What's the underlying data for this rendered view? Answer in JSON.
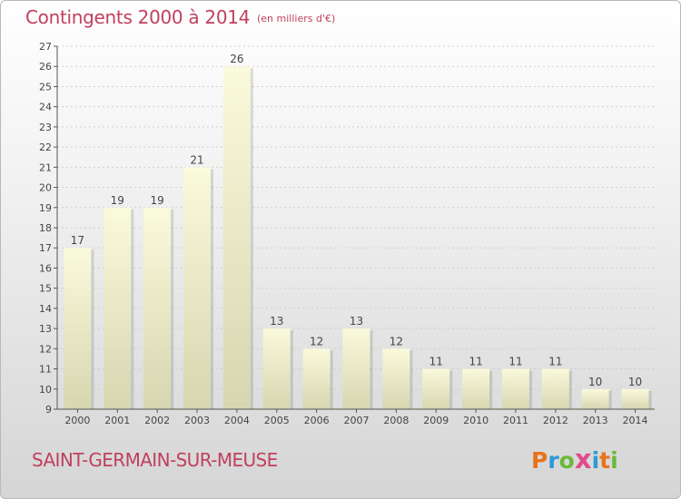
{
  "header": {
    "title": "Contingents 2000 à 2014",
    "subtitle": "(en milliers d'€)"
  },
  "footer": {
    "commune": "SAINT-GERMAIN-SUR-MEUSE",
    "logo_text": "Proxiti",
    "logo_colors": [
      "#e8731a",
      "#2e9ad6",
      "#6ab93a",
      "#e24a8d",
      "#2e9ad6",
      "#e8731a",
      "#6ab93a"
    ]
  },
  "chart_data": {
    "type": "bar",
    "categories": [
      "2000",
      "2001",
      "2002",
      "2003",
      "2004",
      "2005",
      "2006",
      "2007",
      "2008",
      "2009",
      "2010",
      "2011",
      "2012",
      "2013",
      "2014"
    ],
    "values": [
      17,
      19,
      19,
      21,
      26,
      13,
      12,
      13,
      12,
      11,
      11,
      11,
      11,
      10,
      10
    ],
    "ylim": [
      9,
      27
    ],
    "yticks": [
      9,
      10,
      11,
      12,
      13,
      14,
      15,
      16,
      17,
      18,
      19,
      20,
      21,
      22,
      23,
      24,
      25,
      26,
      27
    ],
    "grid": true,
    "legend": "none",
    "colors": {
      "bar_top": "#fafadc",
      "bar_bottom": "#d6d6b0",
      "label": "#444444",
      "axis": "#555555",
      "grid": "#cfcfcf"
    }
  }
}
